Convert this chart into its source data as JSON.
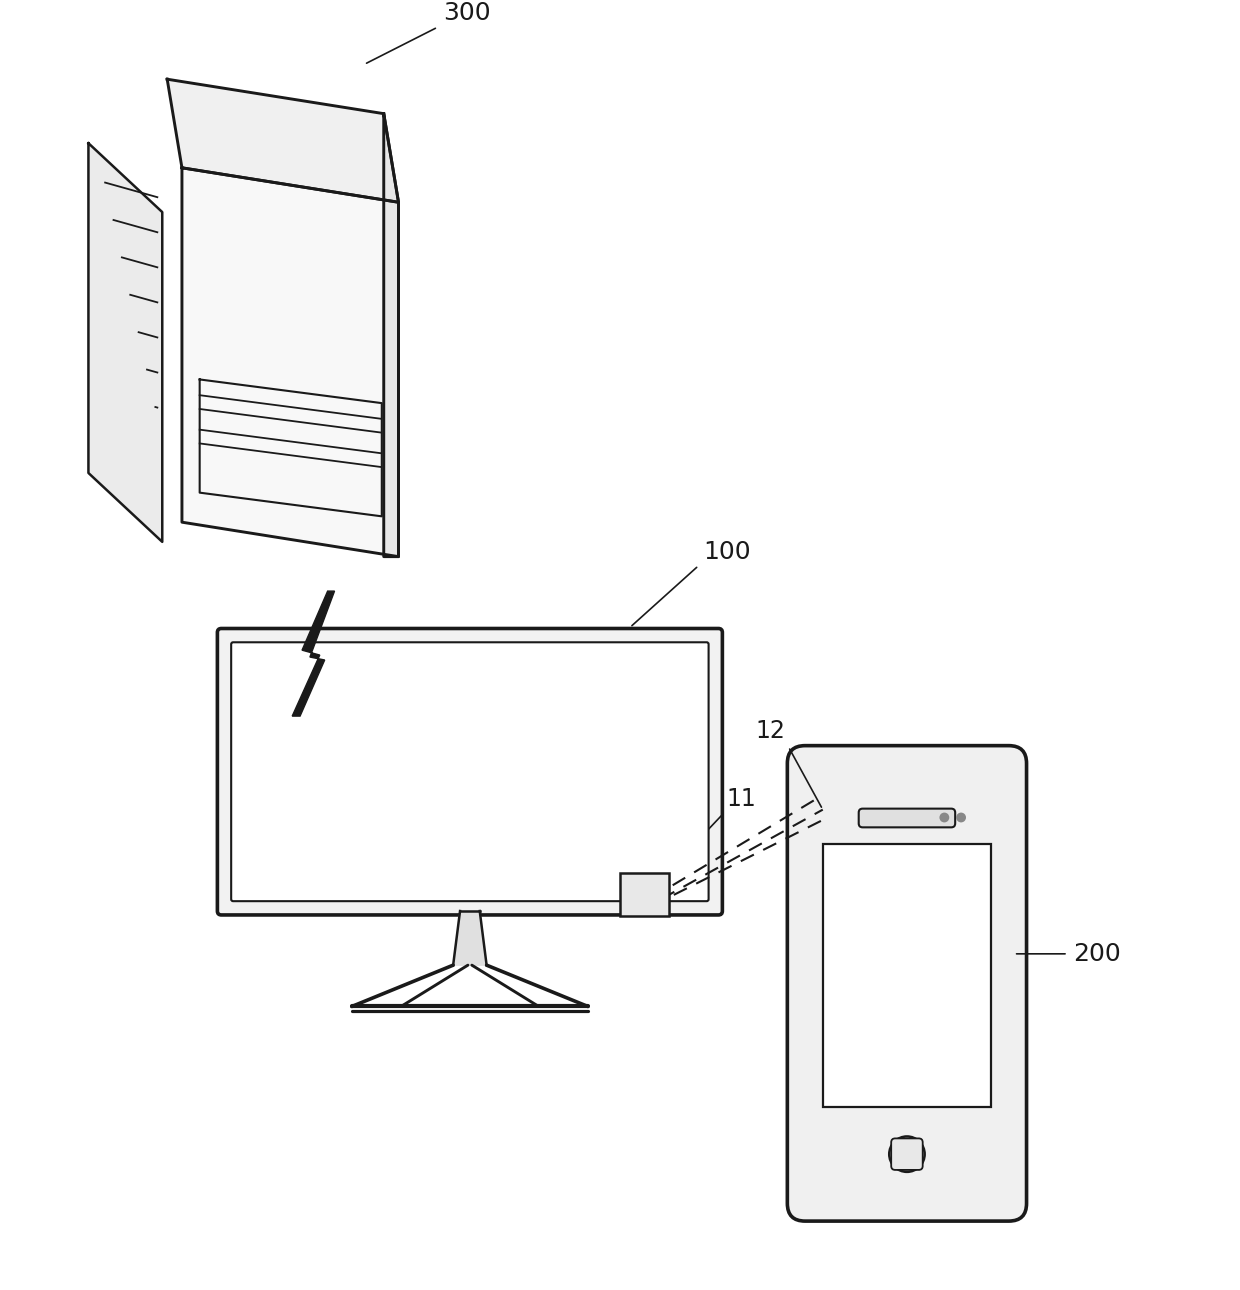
{
  "bg_color": "#ffffff",
  "line_color": "#1a1a1a",
  "line_width": 1.8,
  "label_300": "300",
  "label_100": "100",
  "label_11": "11",
  "label_12": "12",
  "label_200": "200",
  "font_size": 18
}
